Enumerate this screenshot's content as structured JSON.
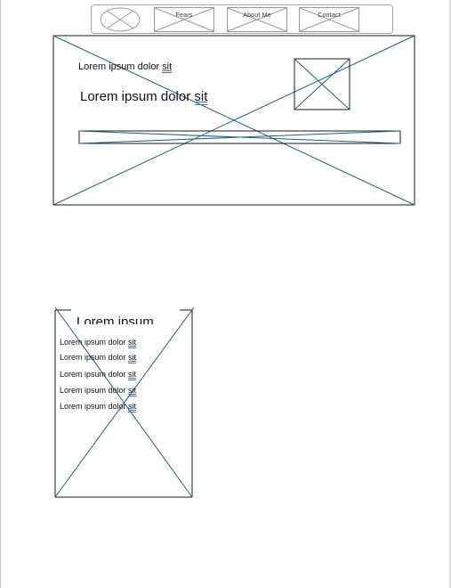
{
  "nav": {
    "items": [
      {
        "label": "",
        "icon": "placeholder-image-icon"
      },
      {
        "label": "Fears"
      },
      {
        "label": "About Me"
      },
      {
        "label": "Contact"
      }
    ]
  },
  "hero": {
    "text_small": "Lorem ipsum dolor",
    "text_small_link": "sit",
    "text_large": "Lorem ipsum dolor",
    "text_large_link": "sit"
  },
  "card": {
    "title": "Lorem ipsum",
    "lines": [
      {
        "text": "Lorem ipsum dolor",
        "link": "sit"
      },
      {
        "text": "Lorem ipsum dolor",
        "link": "sit"
      },
      {
        "text": "Lorem ipsum dolor",
        "link": "sit"
      },
      {
        "text": "Lorem ipsum dolor",
        "link": "sit"
      },
      {
        "text": "Lorem ipsum dolor",
        "link": "sit"
      }
    ]
  },
  "colors": {
    "stroke": "#1f5f8b",
    "border": "#1a1a1a",
    "nav_border": "#a8a8a8",
    "link_underline": "#4a6fd1"
  }
}
